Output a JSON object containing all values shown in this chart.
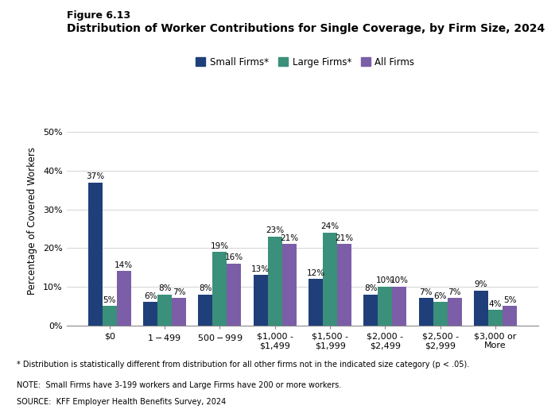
{
  "title_line1": "Figure 6.13",
  "title_line2": "Distribution of Worker Contributions for Single Coverage, by Firm Size, 2024",
  "categories": [
    "$0",
    "$1 - $499",
    "$500 - $999",
    "$1,000 -\n$1,499",
    "$1,500 -\n$1,999",
    "$2,000 -\n$2,499",
    "$2,500 -\n$2,999",
    "$3,000 or\nMore"
  ],
  "small_firms": [
    37,
    6,
    8,
    13,
    12,
    8,
    7,
    9
  ],
  "large_firms": [
    5,
    8,
    19,
    23,
    24,
    10,
    6,
    4
  ],
  "all_firms": [
    14,
    7,
    16,
    21,
    21,
    10,
    7,
    5
  ],
  "small_color": "#1f3f7a",
  "large_color": "#3a907a",
  "all_color": "#7b5ea7",
  "ylabel": "Percentage of Covered Workers",
  "ylim": [
    0,
    54
  ],
  "yticks": [
    0,
    10,
    20,
    30,
    40,
    50
  ],
  "ytick_labels": [
    "0%",
    "10%",
    "20%",
    "30%",
    "40%",
    "50%"
  ],
  "legend_labels": [
    "Small Firms*",
    "Large Firms*",
    "All Firms"
  ],
  "footnote1": "* Distribution is statistically different from distribution for all other firms not in the indicated size category (p < .05).",
  "footnote2": "NOTE:  Small Firms have 3-199 workers and Large Firms have 200 or more workers.",
  "footnote3": "SOURCE:  KFF Employer Health Benefits Survey, 2024",
  "bar_width": 0.26,
  "label_fontsize": 7.5,
  "tick_fontsize": 8,
  "ylabel_fontsize": 8.5,
  "title1_fontsize": 9,
  "title2_fontsize": 10,
  "legend_fontsize": 8.5,
  "footnote_fontsize": 7
}
